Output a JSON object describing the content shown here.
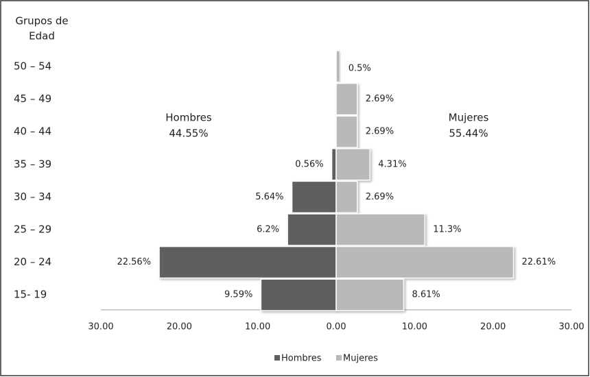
{
  "chart_data": {
    "type": "pyramid",
    "y_axis_title": [
      "Grupos de",
      "Edad"
    ],
    "categories": [
      "50 – 54",
      "45 – 49",
      "40 – 44",
      "35 – 39",
      "30 – 34",
      "25 – 29",
      "20 – 24",
      "15- 19"
    ],
    "series": [
      {
        "name": "Hombres",
        "color": "#5f5f5f",
        "side": "left",
        "values": [
          null,
          null,
          null,
          0.56,
          5.64,
          6.2,
          22.56,
          9.59
        ],
        "value_labels": [
          null,
          null,
          null,
          "0.56%",
          "5.64%",
          "6.2%",
          "22.56%",
          "9.59%"
        ]
      },
      {
        "name": "Mujeres",
        "color": "#b9b9b9",
        "side": "right",
        "values": [
          0.5,
          2.69,
          2.69,
          4.31,
          2.69,
          11.3,
          22.61,
          8.61
        ],
        "value_labels": [
          "0.5%",
          "2.69%",
          "2.69%",
          "4.31%",
          "2.69%",
          "11.3%",
          "22.61%",
          "8.61%"
        ]
      }
    ],
    "annotations": [
      [
        "Hombres",
        "44.55%"
      ],
      [
        "Mujeres",
        "55.44%"
      ]
    ],
    "xlim": [
      -30,
      30
    ],
    "xticks": [
      {
        "value": -30,
        "label": "30.00"
      },
      {
        "value": -20,
        "label": "20.00"
      },
      {
        "value": -10,
        "label": "10.00"
      },
      {
        "value": 0,
        "label": "0.00"
      },
      {
        "value": 10,
        "label": "10.00"
      },
      {
        "value": 20,
        "label": "20.00"
      },
      {
        "value": 30,
        "label": "30.00"
      }
    ],
    "legend": "bottom"
  }
}
